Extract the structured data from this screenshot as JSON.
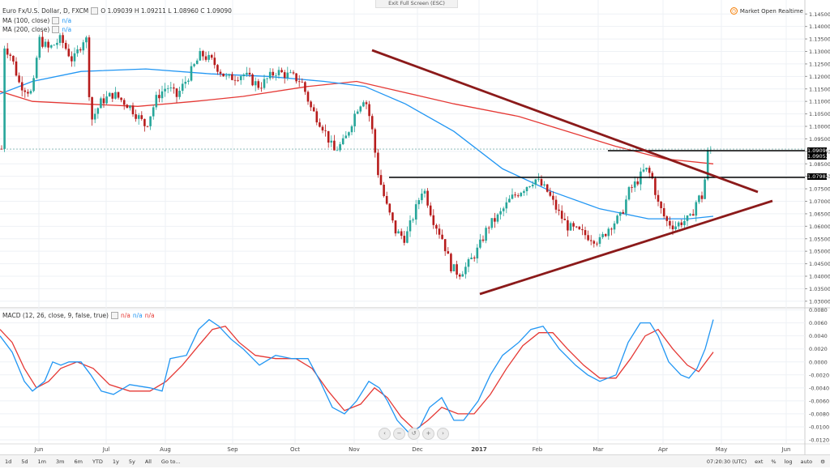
{
  "exit_fullscreen": "Exit Full Screen (ESC)",
  "main_legend": {
    "symbol": "Euro Fx/U.S. Dollar, D, FXCM",
    "ohlc": "O 1.09039  H 1.09211  L 1.08960  C 1.09090"
  },
  "ma100_legend": {
    "label": "MA (100, close)",
    "value": "n/a"
  },
  "ma200_legend": {
    "label": "MA (200, close)",
    "value": "n/a"
  },
  "macd_legend": {
    "label": "MACD (12, 26, close, 9, false, true)",
    "v1": "n/a",
    "v2": "n/a",
    "v3": "n/a"
  },
  "status": {
    "text": "Market Open  Realtime",
    "icon": "clock-icon"
  },
  "price_axis": {
    "ticks": [
      "1.14500",
      "1.14000",
      "1.13500",
      "1.13000",
      "1.12500",
      "1.12000",
      "1.11500",
      "1.11000",
      "1.10500",
      "1.10000",
      "1.09500",
      "1.09000",
      "1.08500",
      "1.08000",
      "1.07500",
      "1.07000",
      "1.06500",
      "1.06000",
      "1.05500",
      "1.05000",
      "1.04500",
      "1.04000",
      "1.03500",
      "1.03000"
    ],
    "current": "1.09090",
    "label2": "1.09053",
    "label3": "1.07982"
  },
  "macd_axis": {
    "ticks": [
      "0.0080",
      "0.0060",
      "0.0040",
      "0.0020",
      "0.0000",
      "-0.0020",
      "-0.0040",
      "-0.0060",
      "-0.0080",
      "-0.0100",
      "-0.0120"
    ]
  },
  "time_axis": [
    "Jun",
    "Jul",
    "Aug",
    "Sep",
    "Oct",
    "Nov",
    "Dec",
    "2017",
    "Feb",
    "Mar",
    "Apr",
    "May",
    "Jun"
  ],
  "bottom_toolbar": {
    "ranges": [
      "1d",
      "5d",
      "1m",
      "3m",
      "6m",
      "YTD",
      "1y",
      "5y",
      "All"
    ],
    "goto": "Go to...",
    "time": "07:20:30 (UTC)",
    "opts": [
      "ext",
      "%",
      "log",
      "auto"
    ]
  },
  "colors": {
    "up": "#26a69a",
    "down": "#b71c1c",
    "ma100": "#2196f3",
    "ma200": "#e53935",
    "trend": "#8b1a1a",
    "macd": "#2196f3",
    "signal": "#e53935"
  },
  "chart_data": {
    "type": "candlestick",
    "instrument": "Euro Fx/U.S. Dollar",
    "timeframe": "D",
    "approximate_closes": [
      {
        "date": "Jun",
        "close": 1.135
      },
      {
        "date": "Jul",
        "close": 1.11
      },
      {
        "date": "Aug",
        "close": 1.115
      },
      {
        "date": "Sep",
        "close": 1.12
      },
      {
        "date": "Oct",
        "close": 1.12
      },
      {
        "date": "Nov",
        "close": 1.09
      },
      {
        "date": "Dec",
        "close": 1.06
      },
      {
        "date": "2017",
        "close": 1.045
      },
      {
        "date": "Feb",
        "close": 1.075
      },
      {
        "date": "Mar",
        "close": 1.06
      },
      {
        "date": "Apr",
        "close": 1.065
      },
      {
        "date": "May",
        "close": 1.0909
      }
    ],
    "horizontal_levels": [
      1.09053,
      1.07982
    ],
    "current_price": 1.0909,
    "price_range": [
      1.028,
      1.148
    ],
    "macd_range": [
      -0.0125,
      0.0082
    ]
  }
}
